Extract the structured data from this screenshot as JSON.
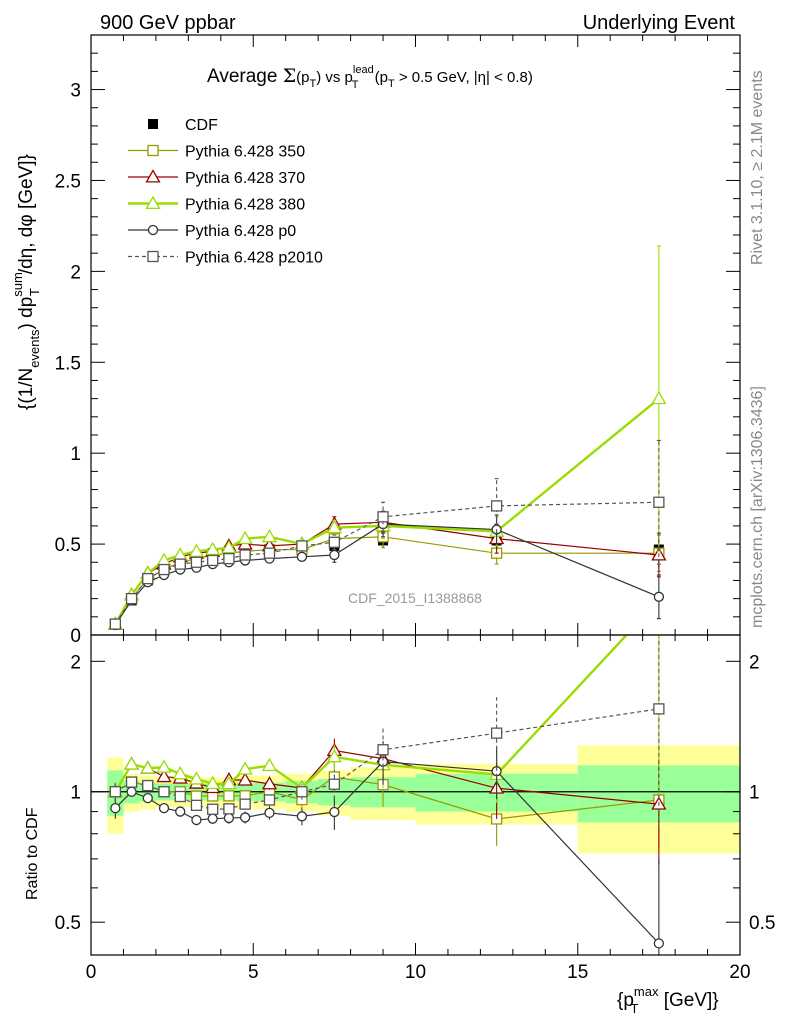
{
  "header": {
    "left": "900 GeV ppbar",
    "right": "Underlying Event"
  },
  "side": {
    "rivet": "Rivet 3.1.10, ≥ 2.1M events",
    "mcplots": "mcplots.cern.ch [arXiv:1306.3436]"
  },
  "title": {
    "prefix": "Average ",
    "sigma": "Σ",
    "pt_open": "(p",
    "pt_sub": "T",
    "pt_close": ")",
    "vs": " vs p",
    "lead_sup": "lead",
    "lead_sub": "T",
    "cut_open": " (p",
    "cut_sub": "T",
    "cut_rest": " > 0.5 GeV, |η| < 0.8)"
  },
  "watermark": "CDF_2015_I1388868",
  "y_label_top": {
    "p1": "{(1/N",
    "p1_sub": "events",
    "p2": ") dp",
    "p2_sup": "sum",
    "p2_sub": "T",
    "p3": "/dη, dφ [GeV]}"
  },
  "y_label_bottom": "Ratio to CDF",
  "x_label": {
    "open": "{p",
    "sup": "max",
    "sub": "T",
    "close": " [GeV]}"
  },
  "chart_data": {
    "type": "line",
    "xlim": [
      0,
      20
    ],
    "top": {
      "ylim": [
        0,
        3.3
      ],
      "yticks": [
        0,
        0.5,
        1,
        1.5,
        2,
        2.5,
        3
      ],
      "yticklabels": [
        "0",
        "0.5",
        "1",
        "1.5",
        "2",
        "2.5",
        "3"
      ]
    },
    "bottom": {
      "ylim": [
        0.42,
        2.3
      ],
      "log": true,
      "yticks": [
        0.5,
        1,
        2
      ],
      "yticklabels": [
        "0.5",
        "1",
        "2"
      ]
    },
    "xticks": [
      0,
      5,
      10,
      15,
      20
    ],
    "xticklabels": [
      "0",
      "5",
      "10",
      "15",
      "20"
    ],
    "bins": [
      [
        0.5,
        1.0
      ],
      [
        1.0,
        1.5
      ],
      [
        1.5,
        2.0
      ],
      [
        2.0,
        2.5
      ],
      [
        2.5,
        3.0
      ],
      [
        3.0,
        3.5
      ],
      [
        3.5,
        4.0
      ],
      [
        4.0,
        4.5
      ],
      [
        4.5,
        5.0
      ],
      [
        5.0,
        6.0
      ],
      [
        6.0,
        7.0
      ],
      [
        7.0,
        8.0
      ],
      [
        8.0,
        10.0
      ],
      [
        10.0,
        15.0
      ],
      [
        15.0,
        20.0
      ]
    ],
    "x": [
      0.75,
      1.25,
      1.75,
      2.25,
      2.75,
      3.25,
      3.75,
      4.25,
      4.75,
      5.5,
      6.5,
      7.5,
      9.0,
      12.5,
      17.5
    ],
    "legend_position": "top-left",
    "data": {
      "name": "CDF",
      "color": "#000000",
      "values": [
        0.06,
        0.19,
        0.3,
        0.36,
        0.4,
        0.43,
        0.45,
        0.46,
        0.47,
        0.47,
        0.49,
        0.49,
        0.52,
        0.52,
        0.47
      ],
      "errors": [
        0.004,
        0.01,
        0.01,
        0.01,
        0.012,
        0.012,
        0.014,
        0.015,
        0.016,
        0.017,
        0.02,
        0.03,
        0.04,
        0.05,
        0.1
      ],
      "band_green": [
        0.12,
        0.06,
        0.05,
        0.045,
        0.045,
        0.045,
        0.045,
        0.045,
        0.05,
        0.05,
        0.06,
        0.07,
        0.08,
        0.1,
        0.15
      ],
      "band_yellow": [
        0.2,
        0.1,
        0.09,
        0.08,
        0.08,
        0.08,
        0.08,
        0.08,
        0.09,
        0.09,
        0.1,
        0.12,
        0.14,
        0.16,
        0.28
      ]
    },
    "series": [
      {
        "name": "Pythia 6.428 350",
        "color": "#999900",
        "marker": "square",
        "dashed": false,
        "values": [
          0.06,
          0.2,
          0.31,
          0.36,
          0.4,
          0.42,
          0.44,
          0.45,
          0.46,
          0.47,
          0.47,
          0.53,
          0.54,
          0.45,
          0.45
        ],
        "errors": [
          0.003,
          0.005,
          0.007,
          0.008,
          0.01,
          0.01,
          0.01,
          0.012,
          0.013,
          0.015,
          0.02,
          0.04,
          0.06,
          0.06,
          0.1
        ]
      },
      {
        "name": "Pythia 6.428 370",
        "color": "#990000",
        "marker": "triangle",
        "dashed": false,
        "values": [
          0.06,
          0.22,
          0.34,
          0.39,
          0.43,
          0.45,
          0.46,
          0.49,
          0.5,
          0.49,
          0.5,
          0.61,
          0.62,
          0.53,
          0.44
        ],
        "errors": [
          0.003,
          0.005,
          0.007,
          0.008,
          0.01,
          0.01,
          0.01,
          0.012,
          0.013,
          0.015,
          0.02,
          0.04,
          0.06,
          0.08,
          0.12
        ]
      },
      {
        "name": "Pythia 6.428 380",
        "color": "#99dd00",
        "marker": "triangle",
        "dashed": false,
        "thick": true,
        "values": [
          0.06,
          0.22,
          0.34,
          0.41,
          0.44,
          0.46,
          0.47,
          0.48,
          0.53,
          0.54,
          0.5,
          0.59,
          0.6,
          0.57,
          1.3
        ],
        "errors": [
          0.003,
          0.005,
          0.007,
          0.008,
          0.01,
          0.01,
          0.01,
          0.012,
          0.013,
          0.015,
          0.02,
          0.04,
          0.07,
          0.08,
          0.84
        ]
      },
      {
        "name": "Pythia 6.428 p0",
        "color": "#333333",
        "marker": "circle",
        "dashed": false,
        "values": [
          0.055,
          0.19,
          0.29,
          0.33,
          0.36,
          0.37,
          0.39,
          0.4,
          0.41,
          0.42,
          0.43,
          0.44,
          0.61,
          0.58,
          0.21
        ],
        "errors": [
          0.003,
          0.005,
          0.007,
          0.008,
          0.01,
          0.01,
          0.01,
          0.012,
          0.013,
          0.015,
          0.02,
          0.04,
          0.07,
          0.08,
          0.12
        ]
      },
      {
        "name": "Pythia 6.428 p2010",
        "color": "#555555",
        "marker": "square",
        "dashed": true,
        "values": [
          0.06,
          0.2,
          0.31,
          0.36,
          0.39,
          0.4,
          0.41,
          0.42,
          0.44,
          0.45,
          0.49,
          0.51,
          0.65,
          0.71,
          0.73
        ],
        "errors": [
          0.003,
          0.005,
          0.007,
          0.008,
          0.01,
          0.01,
          0.01,
          0.012,
          0.013,
          0.015,
          0.02,
          0.04,
          0.08,
          0.15,
          0.34
        ]
      }
    ]
  }
}
